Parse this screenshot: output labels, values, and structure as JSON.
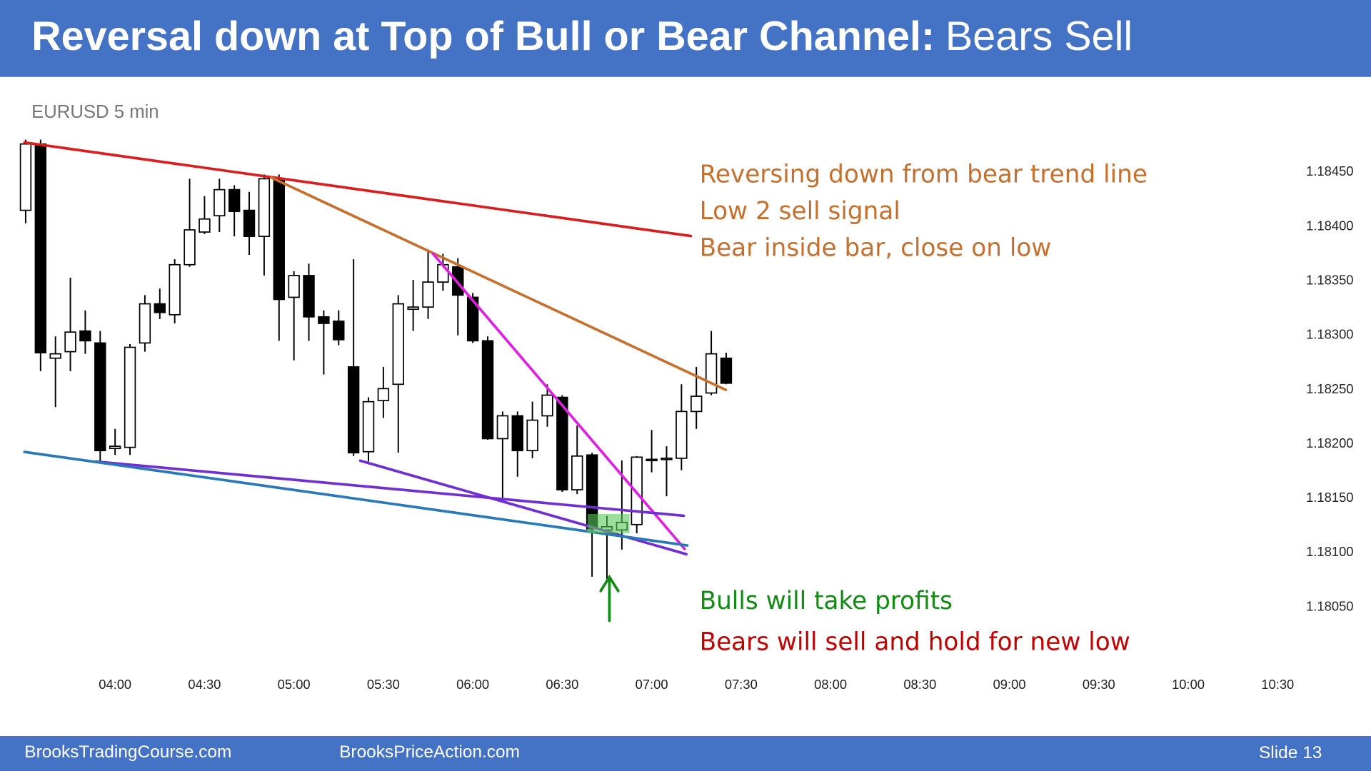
{
  "header": {
    "title_bold": "Reversal down at Top of Bull or Bear Channel:",
    "title_rest": "Bears Sell"
  },
  "chart_data": {
    "type": "candlestick",
    "subtitle": "EURUSD 5 min",
    "x": [
      "03:30",
      "03:35",
      "03:40",
      "03:45",
      "03:50",
      "03:55",
      "04:00",
      "04:05",
      "04:10",
      "04:15",
      "04:20",
      "04:25",
      "04:30",
      "04:35",
      "04:40",
      "04:45",
      "04:50",
      "04:55",
      "05:00",
      "05:05",
      "05:10",
      "05:15",
      "05:20",
      "05:25",
      "05:30",
      "05:35",
      "05:40",
      "05:45",
      "05:50",
      "05:55",
      "06:00",
      "06:05",
      "06:10",
      "06:15",
      "06:20",
      "06:25",
      "06:30",
      "06:35",
      "06:40",
      "06:45",
      "06:50",
      "06:55",
      "07:00",
      "07:05",
      "07:10",
      "07:15",
      "07:20",
      "07:25"
    ],
    "open": [
      1.18415,
      1.18476,
      1.18279,
      1.18285,
      1.18304,
      1.18293,
      1.18196,
      1.18197,
      1.18293,
      1.18329,
      1.18319,
      1.18365,
      1.18395,
      1.1841,
      1.18434,
      1.18415,
      1.18391,
      1.18444,
      1.18335,
      1.18355,
      1.18317,
      1.18313,
      1.18271,
      1.18193,
      1.1824,
      1.18255,
      1.18324,
      1.18326,
      1.18349,
      1.18363,
      1.18335,
      1.18295,
      1.18205,
      1.18226,
      1.18194,
      1.18226,
      1.18243,
      1.18158,
      1.1819,
      1.18121,
      1.18121,
      1.18126,
      1.18185,
      1.18186,
      1.18187,
      1.1823,
      1.18247,
      1.18279
    ],
    "high": [
      1.1848,
      1.1848,
      1.18299,
      1.18353,
      1.18323,
      1.18304,
      1.18214,
      1.18292,
      1.18337,
      1.18343,
      1.1837,
      1.18444,
      1.18428,
      1.18444,
      1.18438,
      1.18432,
      1.18448,
      1.18448,
      1.18359,
      1.18366,
      1.18323,
      1.18323,
      1.1837,
      1.18243,
      1.18271,
      1.18337,
      1.18351,
      1.18379,
      1.18375,
      1.18371,
      1.18339,
      1.18299,
      1.1823,
      1.1823,
      1.18239,
      1.18255,
      1.18245,
      1.18217,
      1.18192,
      1.18134,
      1.18185,
      1.18189,
      1.18213,
      1.18198,
      1.18255,
      1.18271,
      1.18304,
      1.18284
    ],
    "low": [
      1.18403,
      1.18267,
      1.18234,
      1.18267,
      1.18283,
      1.18184,
      1.1819,
      1.1819,
      1.18285,
      1.18315,
      1.18311,
      1.18363,
      1.18393,
      1.18395,
      1.18391,
      1.18374,
      1.18355,
      1.18295,
      1.18277,
      1.18295,
      1.18264,
      1.18291,
      1.18189,
      1.18184,
      1.18224,
      1.18192,
      1.18304,
      1.18315,
      1.18341,
      1.183,
      1.18293,
      1.18204,
      1.1815,
      1.1817,
      1.18187,
      1.18216,
      1.18156,
      1.18154,
      1.18078,
      1.18076,
      1.18103,
      1.18118,
      1.18174,
      1.18152,
      1.18176,
      1.18214,
      1.18245,
      1.18255
    ],
    "close": [
      1.18476,
      1.18284,
      1.18283,
      1.18303,
      1.18295,
      1.18194,
      1.18198,
      1.18289,
      1.18329,
      1.18321,
      1.18365,
      1.18397,
      1.18407,
      1.18434,
      1.18414,
      1.18391,
      1.18444,
      1.18333,
      1.18355,
      1.18317,
      1.18311,
      1.18296,
      1.18192,
      1.18239,
      1.18251,
      1.18329,
      1.18326,
      1.18349,
      1.18365,
      1.18337,
      1.18295,
      1.18205,
      1.18226,
      1.18194,
      1.18222,
      1.18245,
      1.18158,
      1.18189,
      1.18122,
      1.18124,
      1.18128,
      1.18188,
      1.18186,
      1.18187,
      1.1823,
      1.18244,
      1.18283,
      1.18256
    ],
    "up_color": "#ffffff",
    "down_color": "#000000",
    "xlim": [
      "03:25",
      "10:35"
    ],
    "xticks": [
      "04:00",
      "04:30",
      "05:00",
      "05:30",
      "06:00",
      "06:30",
      "07:00",
      "07:30",
      "08:00",
      "08:30",
      "09:00",
      "09:30",
      "10:00",
      "10:30"
    ],
    "ylim": [
      1.1803,
      1.18485
    ],
    "yticks": [
      {
        "value": 1.1805,
        "label": "1.18050"
      },
      {
        "value": 1.181,
        "label": "1.18100"
      },
      {
        "value": 1.1815,
        "label": "1.18150"
      },
      {
        "value": 1.182,
        "label": "1.18200"
      },
      {
        "value": 1.1825,
        "label": "1.18250"
      },
      {
        "value": 1.183,
        "label": "1.18300"
      },
      {
        "value": 1.1835,
        "label": "1.18350"
      },
      {
        "value": 1.184,
        "label": "1.18400"
      },
      {
        "value": 1.1845,
        "label": "1.18450"
      }
    ],
    "grid": false,
    "annotations": [
      {
        "text": "Reversing down from bear trend line",
        "color": "#c5702e"
      },
      {
        "text": "Low 2 sell signal",
        "color": "#c5702e"
      },
      {
        "text": "Bear inside bar, close on low",
        "color": "#c5702e"
      },
      {
        "text": "Bulls will take profits",
        "color": "#138a13"
      },
      {
        "text": "Bears will sell and hold for new low",
        "color": "#c00000"
      }
    ]
  },
  "footer": {
    "left": "BrooksTradingCourse.com",
    "center": "BrooksPriceAction.com",
    "right": "Slide  13"
  }
}
